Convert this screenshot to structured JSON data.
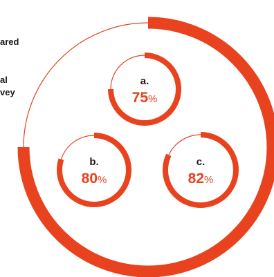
{
  "side_text": [
    "ared",
    "al",
    "vey"
  ],
  "colors": {
    "accent": "#e8421e",
    "text": "#1a1a1a",
    "background": "#ffffff"
  },
  "chart_data": [
    {
      "type": "pie",
      "role": "outer-ring",
      "value": 75,
      "max": 100
    },
    {
      "type": "pie",
      "label": "a.",
      "value": 75,
      "unit": "%",
      "max": 100
    },
    {
      "type": "pie",
      "label": "b.",
      "value": 80,
      "unit": "%",
      "max": 100
    },
    {
      "type": "pie",
      "label": "c.",
      "value": 82,
      "unit": "%",
      "max": 100
    }
  ]
}
